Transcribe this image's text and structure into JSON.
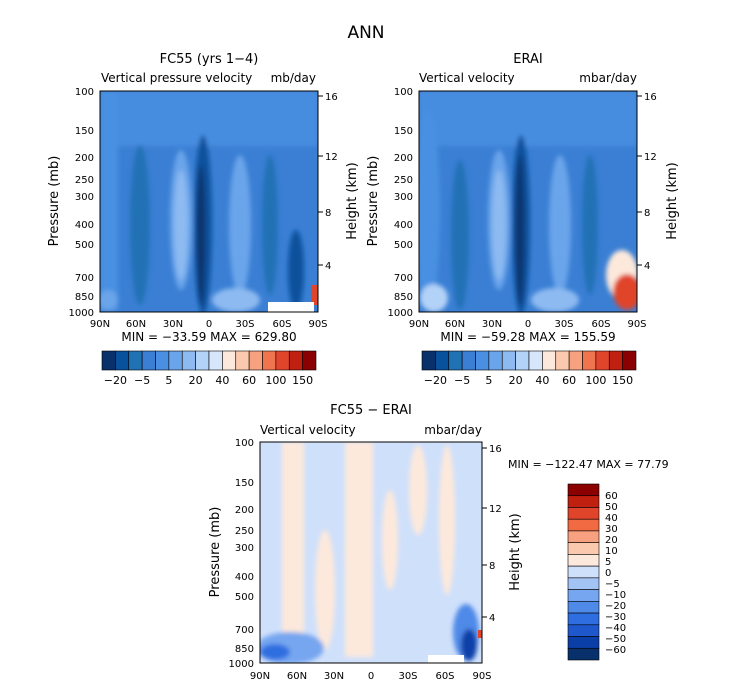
{
  "main_title": "ANN",
  "colors": {
    "lev_plot": [
      "#08306b",
      "#08519c",
      "#2171b5",
      "#3a7fd4",
      "#4a90e2",
      "#6aa4ea",
      "#8dbaf1",
      "#b3d2f7",
      "#d6e6fb",
      "#fde9dc",
      "#fbc9ad",
      "#f7a180",
      "#f0754e",
      "#e0442b",
      "#c0200f",
      "#8b0000"
    ],
    "diff": [
      "#08306b",
      "#0b3fa8",
      "#1f57cc",
      "#2f6ee0",
      "#4f8ae8",
      "#76a6ef",
      "#a3c3f5",
      "#cfe0fb",
      "#fde9dc",
      "#fbc9ad",
      "#f7a180",
      "#f26a42",
      "#e0442b",
      "#c0200f",
      "#8b0000"
    ]
  },
  "chart_data": [
    {
      "type": "heatmap",
      "title": "FC55 (yrs 1−4)",
      "left_label": "Vertical pressure velocity",
      "right_label": "mb/day",
      "ylabel": "Pressure (mb)",
      "ylabel_right": "Height (km)",
      "x_ticks": [
        "90N",
        "60N",
        "30N",
        "0",
        "30S",
        "60S",
        "90S"
      ],
      "y_ticks": [
        "100",
        "150",
        "200",
        "250",
        "300",
        "400",
        "500",
        "700",
        "850",
        "1000"
      ],
      "y_ticks_right": [
        "16",
        "12",
        "8",
        "4"
      ],
      "stats": "MIN = −33.59   MAX = 629.80",
      "colorbar_labels": [
        "−20",
        "−5",
        "5",
        "20",
        "40",
        "60",
        "100",
        "150"
      ],
      "palette": "lev_plot"
    },
    {
      "type": "heatmap",
      "title": "ERAI",
      "left_label": "Vertical velocity",
      "right_label": "mbar/day",
      "ylabel": "Pressure (mb)",
      "ylabel_right": "Height (km)",
      "x_ticks": [
        "90N",
        "60N",
        "30N",
        "0",
        "30S",
        "60S",
        "90S"
      ],
      "y_ticks": [
        "100",
        "150",
        "200",
        "250",
        "300",
        "400",
        "500",
        "700",
        "850",
        "1000"
      ],
      "y_ticks_right": [
        "16",
        "12",
        "8",
        "4"
      ],
      "stats": "MIN = −59.28   MAX = 155.59",
      "colorbar_labels": [
        "−20",
        "−5",
        "5",
        "20",
        "40",
        "60",
        "100",
        "150"
      ],
      "palette": "lev_plot"
    },
    {
      "type": "heatmap",
      "title": "FC55 − ERAI",
      "left_label": "Vertical velocity",
      "right_label": "mbar/day",
      "ylabel": "Pressure (mb)",
      "ylabel_right": "Height (km)",
      "x_ticks": [
        "90N",
        "60N",
        "30N",
        "0",
        "30S",
        "60S",
        "90S"
      ],
      "y_ticks": [
        "100",
        "150",
        "200",
        "250",
        "300",
        "400",
        "500",
        "700",
        "850",
        "1000"
      ],
      "y_ticks_right": [
        "16",
        "12",
        "8",
        "4"
      ],
      "stats": "MIN = −122.47   MAX =   77.79",
      "colorbar_labels": [
        "60",
        "50",
        "40",
        "30",
        "20",
        "10",
        "5",
        "0",
        "−5",
        "−10",
        "−20",
        "−30",
        "−40",
        "−50",
        "−60"
      ],
      "palette": "diff"
    }
  ]
}
